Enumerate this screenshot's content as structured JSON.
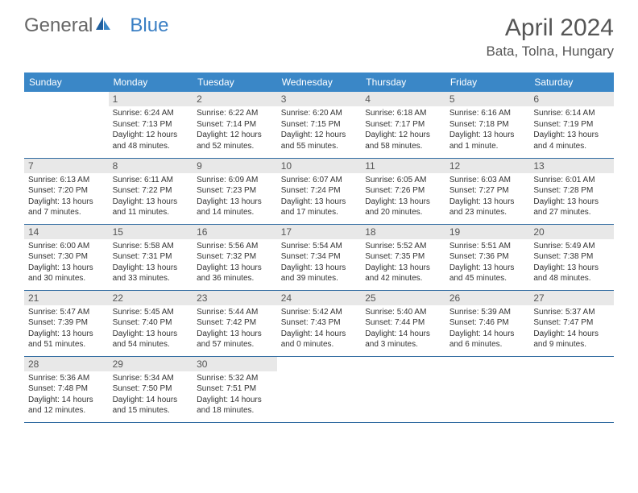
{
  "logo": {
    "prefix": "General",
    "suffix": "Blue"
  },
  "title": "April 2024",
  "location": "Bata, Tolna, Hungary",
  "header_bg": "#3a87c7",
  "border_color": "#2f6aa0",
  "daynum_bg": "#e8e8e8",
  "weekdays": [
    "Sunday",
    "Monday",
    "Tuesday",
    "Wednesday",
    "Thursday",
    "Friday",
    "Saturday"
  ],
  "weeks": [
    [
      null,
      {
        "d": "1",
        "sr": "6:24 AM",
        "ss": "7:13 PM",
        "dl": "12 hours and 48 minutes."
      },
      {
        "d": "2",
        "sr": "6:22 AM",
        "ss": "7:14 PM",
        "dl": "12 hours and 52 minutes."
      },
      {
        "d": "3",
        "sr": "6:20 AM",
        "ss": "7:15 PM",
        "dl": "12 hours and 55 minutes."
      },
      {
        "d": "4",
        "sr": "6:18 AM",
        "ss": "7:17 PM",
        "dl": "12 hours and 58 minutes."
      },
      {
        "d": "5",
        "sr": "6:16 AM",
        "ss": "7:18 PM",
        "dl": "13 hours and 1 minute."
      },
      {
        "d": "6",
        "sr": "6:14 AM",
        "ss": "7:19 PM",
        "dl": "13 hours and 4 minutes."
      }
    ],
    [
      {
        "d": "7",
        "sr": "6:13 AM",
        "ss": "7:20 PM",
        "dl": "13 hours and 7 minutes."
      },
      {
        "d": "8",
        "sr": "6:11 AM",
        "ss": "7:22 PM",
        "dl": "13 hours and 11 minutes."
      },
      {
        "d": "9",
        "sr": "6:09 AM",
        "ss": "7:23 PM",
        "dl": "13 hours and 14 minutes."
      },
      {
        "d": "10",
        "sr": "6:07 AM",
        "ss": "7:24 PM",
        "dl": "13 hours and 17 minutes."
      },
      {
        "d": "11",
        "sr": "6:05 AM",
        "ss": "7:26 PM",
        "dl": "13 hours and 20 minutes."
      },
      {
        "d": "12",
        "sr": "6:03 AM",
        "ss": "7:27 PM",
        "dl": "13 hours and 23 minutes."
      },
      {
        "d": "13",
        "sr": "6:01 AM",
        "ss": "7:28 PM",
        "dl": "13 hours and 27 minutes."
      }
    ],
    [
      {
        "d": "14",
        "sr": "6:00 AM",
        "ss": "7:30 PM",
        "dl": "13 hours and 30 minutes."
      },
      {
        "d": "15",
        "sr": "5:58 AM",
        "ss": "7:31 PM",
        "dl": "13 hours and 33 minutes."
      },
      {
        "d": "16",
        "sr": "5:56 AM",
        "ss": "7:32 PM",
        "dl": "13 hours and 36 minutes."
      },
      {
        "d": "17",
        "sr": "5:54 AM",
        "ss": "7:34 PM",
        "dl": "13 hours and 39 minutes."
      },
      {
        "d": "18",
        "sr": "5:52 AM",
        "ss": "7:35 PM",
        "dl": "13 hours and 42 minutes."
      },
      {
        "d": "19",
        "sr": "5:51 AM",
        "ss": "7:36 PM",
        "dl": "13 hours and 45 minutes."
      },
      {
        "d": "20",
        "sr": "5:49 AM",
        "ss": "7:38 PM",
        "dl": "13 hours and 48 minutes."
      }
    ],
    [
      {
        "d": "21",
        "sr": "5:47 AM",
        "ss": "7:39 PM",
        "dl": "13 hours and 51 minutes."
      },
      {
        "d": "22",
        "sr": "5:45 AM",
        "ss": "7:40 PM",
        "dl": "13 hours and 54 minutes."
      },
      {
        "d": "23",
        "sr": "5:44 AM",
        "ss": "7:42 PM",
        "dl": "13 hours and 57 minutes."
      },
      {
        "d": "24",
        "sr": "5:42 AM",
        "ss": "7:43 PM",
        "dl": "14 hours and 0 minutes."
      },
      {
        "d": "25",
        "sr": "5:40 AM",
        "ss": "7:44 PM",
        "dl": "14 hours and 3 minutes."
      },
      {
        "d": "26",
        "sr": "5:39 AM",
        "ss": "7:46 PM",
        "dl": "14 hours and 6 minutes."
      },
      {
        "d": "27",
        "sr": "5:37 AM",
        "ss": "7:47 PM",
        "dl": "14 hours and 9 minutes."
      }
    ],
    [
      {
        "d": "28",
        "sr": "5:36 AM",
        "ss": "7:48 PM",
        "dl": "14 hours and 12 minutes."
      },
      {
        "d": "29",
        "sr": "5:34 AM",
        "ss": "7:50 PM",
        "dl": "14 hours and 15 minutes."
      },
      {
        "d": "30",
        "sr": "5:32 AM",
        "ss": "7:51 PM",
        "dl": "14 hours and 18 minutes."
      },
      null,
      null,
      null,
      null
    ]
  ],
  "labels": {
    "sunrise": "Sunrise:",
    "sunset": "Sunset:",
    "daylight": "Daylight:"
  }
}
